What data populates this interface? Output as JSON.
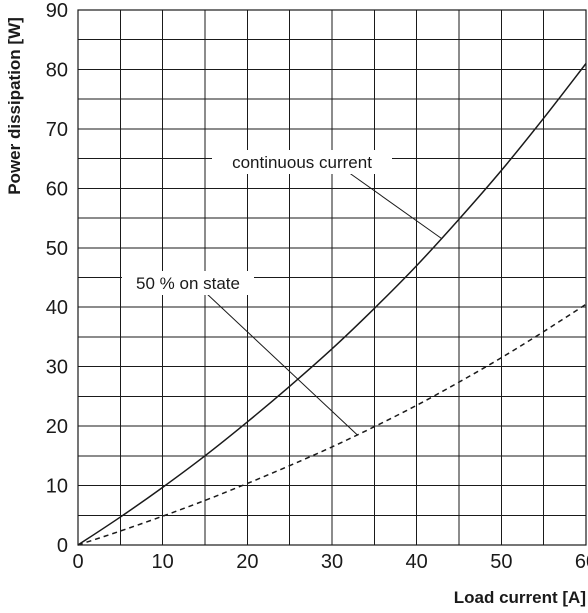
{
  "chart_data": {
    "type": "line",
    "title": "",
    "xlabel": "Load current [A]",
    "ylabel": "Power dissipation [W]",
    "xlim": [
      0,
      60
    ],
    "ylim": [
      0,
      90
    ],
    "xticks": [
      0,
      10,
      20,
      30,
      40,
      50,
      60
    ],
    "yticks": [
      0,
      10,
      20,
      30,
      40,
      50,
      60,
      70,
      80,
      90
    ],
    "grid": true,
    "series": [
      {
        "name": "continuous current",
        "style": "solid",
        "color": "#1a1a1a",
        "x": [
          0,
          5,
          10,
          15,
          20,
          25,
          30,
          35,
          40,
          45,
          50,
          55,
          60
        ],
        "y": [
          0,
          4.7,
          9.7,
          15.0,
          20.7,
          26.7,
          33.0,
          39.8,
          47.0,
          54.8,
          63.0,
          71.8,
          81.0
        ]
      },
      {
        "name": "50 % on state",
        "style": "dashed",
        "color": "#1a1a1a",
        "x": [
          0,
          5,
          10,
          15,
          20,
          25,
          30,
          35,
          40,
          45,
          50,
          55,
          60
        ],
        "y": [
          0,
          2.35,
          4.85,
          7.5,
          10.35,
          13.35,
          16.5,
          19.9,
          23.5,
          27.4,
          31.5,
          35.9,
          40.5
        ]
      }
    ],
    "annotations": [
      {
        "text": "continuous current",
        "points_to": {
          "x": 43,
          "y": 51.5
        }
      },
      {
        "text": "50 % on state",
        "points_to": {
          "x": 33,
          "y": 18.5
        }
      }
    ]
  }
}
